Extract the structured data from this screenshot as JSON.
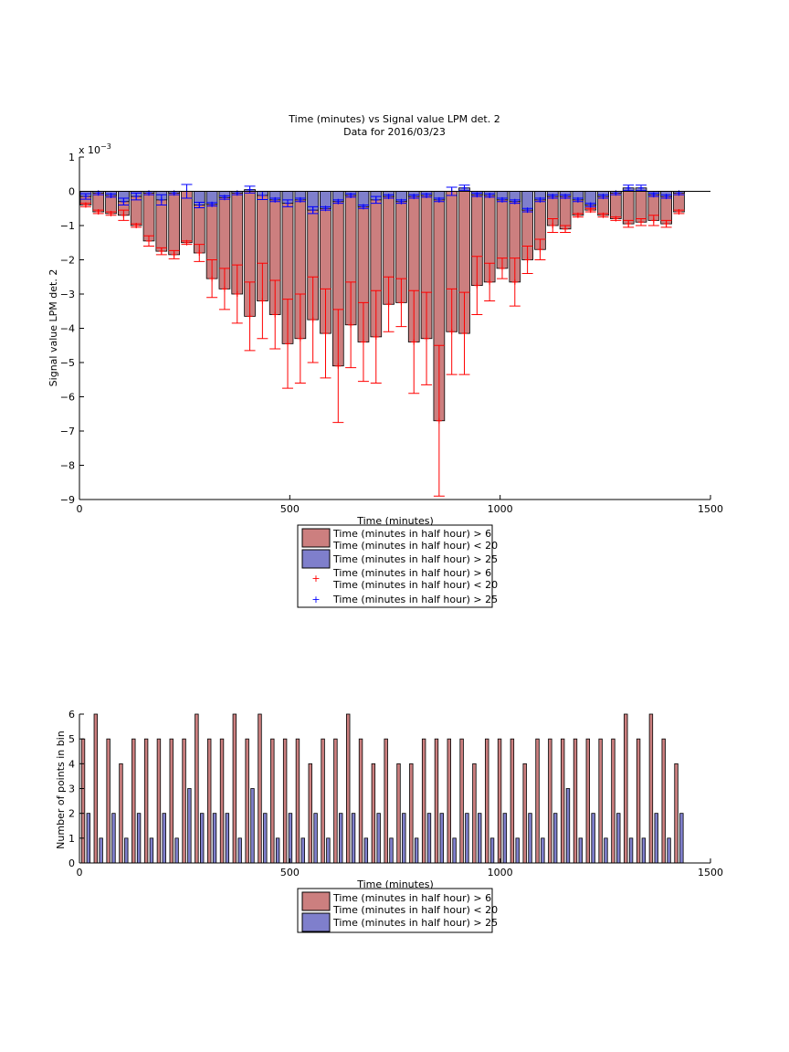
{
  "chart_data": [
    {
      "type": "bar",
      "title": "Time (minutes) vs Signal value LPM det. 2",
      "subtitle": "Data for 2016/03/23",
      "xlabel": "Time (minutes)",
      "ylabel": "Signal value LPM det. 2",
      "y_exponent_label": "x 10",
      "y_exponent": "−3",
      "xlim": [
        0,
        1500
      ],
      "ylim": [
        -9,
        1
      ],
      "xticks": [
        "0",
        "500",
        "1000",
        "1500"
      ],
      "yticks": [
        "1",
        "0",
        "−1",
        "−2",
        "−3",
        "−4",
        "−5",
        "−6",
        "−7",
        "−8",
        "−9"
      ],
      "grid": false,
      "legend_position": "below-plot",
      "legend": [
        "Time (minutes in half hour) > 6\nTime (minutes in half hour) < 20",
        "Time (minutes in half hour) > 25",
        "Time (minutes in half hour) > 6\nTime (minutes in half hour) < 20",
        "Time (minutes in half hour) > 25"
      ],
      "colors": {
        "series1": "#cc7f7f",
        "series2": "#7f7fcc",
        "err1": "#ff0000",
        "err2": "#0000ff"
      },
      "x": [
        15,
        45,
        75,
        105,
        135,
        165,
        195,
        225,
        255,
        285,
        315,
        345,
        375,
        405,
        435,
        465,
        495,
        525,
        555,
        585,
        615,
        645,
        675,
        705,
        735,
        765,
        795,
        825,
        855,
        885,
        915,
        945,
        975,
        1005,
        1035,
        1065,
        1095,
        1125,
        1155,
        1185,
        1215,
        1245,
        1275,
        1305,
        1335,
        1365,
        1395,
        1425
      ],
      "series": [
        {
          "name": "Time (minutes in half hour) > 6\nTime (minutes in half hour) < 20",
          "values": [
            -0.4,
            -0.6,
            -0.65,
            -0.7,
            -1.0,
            -1.45,
            -1.75,
            -1.85,
            -1.5,
            -1.8,
            -2.55,
            -2.85,
            -3.0,
            -3.65,
            -3.2,
            -3.6,
            -4.45,
            -4.3,
            -3.75,
            -4.15,
            -5.1,
            -3.9,
            -4.4,
            -4.25,
            -3.3,
            -3.25,
            -4.4,
            -4.3,
            -6.7,
            -4.1,
            -4.15,
            -2.75,
            -2.65,
            -2.25,
            -2.65,
            -2.0,
            -1.7,
            -1.0,
            -1.1,
            -0.7,
            -0.55,
            -0.7,
            -0.8,
            -0.95,
            -0.9,
            -0.85,
            -0.95,
            -0.6
          ],
          "errors": [
            0.05,
            0.05,
            0.05,
            0.15,
            0.05,
            0.15,
            0.1,
            0.12,
            0.05,
            0.25,
            0.55,
            0.6,
            0.85,
            1.0,
            1.1,
            1.0,
            1.3,
            1.3,
            1.25,
            1.3,
            1.65,
            1.25,
            1.15,
            1.35,
            0.8,
            0.7,
            1.5,
            1.35,
            2.2,
            1.25,
            1.2,
            0.85,
            0.55,
            0.3,
            0.7,
            0.4,
            0.3,
            0.2,
            0.1,
            0.05,
            0.05,
            0.05,
            0.05,
            0.1,
            0.1,
            0.15,
            0.1,
            0.05
          ]
        },
        {
          "name": "Time (minutes in half hour) > 25",
          "values": [
            -0.15,
            -0.05,
            -0.12,
            -0.3,
            -0.15,
            -0.05,
            -0.25,
            -0.05,
            0.0,
            -0.4,
            -0.38,
            -0.18,
            -0.05,
            0.05,
            -0.12,
            -0.25,
            -0.35,
            -0.25,
            -0.55,
            -0.5,
            -0.3,
            -0.12,
            -0.45,
            -0.25,
            -0.15,
            -0.3,
            -0.15,
            -0.12,
            -0.25,
            0.0,
            0.1,
            -0.1,
            -0.12,
            -0.25,
            -0.3,
            -0.55,
            -0.25,
            -0.15,
            -0.15,
            -0.25,
            -0.4,
            -0.15,
            -0.05,
            0.1,
            0.1,
            -0.1,
            -0.15,
            -0.05
          ],
          "errors": [
            0.08,
            0.05,
            0.05,
            0.1,
            0.1,
            0.05,
            0.15,
            0.05,
            0.2,
            0.08,
            0.05,
            0.05,
            0.05,
            0.1,
            0.12,
            0.05,
            0.1,
            0.05,
            0.1,
            0.05,
            0.05,
            0.05,
            0.05,
            0.1,
            0.05,
            0.05,
            0.05,
            0.05,
            0.05,
            0.12,
            0.08,
            0.05,
            0.05,
            0.05,
            0.05,
            0.05,
            0.05,
            0.05,
            0.05,
            0.05,
            0.05,
            0.05,
            0.05,
            0.08,
            0.08,
            0.05,
            0.05,
            0.05
          ]
        }
      ]
    },
    {
      "type": "bar",
      "xlabel": "Time (minutes)",
      "ylabel": "Number of points in bin",
      "xlim": [
        0,
        1500
      ],
      "ylim": [
        0,
        6
      ],
      "xticks": [
        "0",
        "500",
        "1000",
        "1500"
      ],
      "yticks": [
        "6",
        "5",
        "4",
        "3",
        "2",
        "1",
        "0"
      ],
      "grid": false,
      "legend_position": "below-plot",
      "legend": [
        "Time (minutes in half hour) > 6\nTime (minutes in half hour) < 20",
        "Time (minutes in half hour) > 25"
      ],
      "colors": {
        "series1": "#cc7f7f",
        "series2": "#7f7fcc"
      },
      "x": [
        15,
        45,
        75,
        105,
        135,
        165,
        195,
        225,
        255,
        285,
        315,
        345,
        375,
        405,
        435,
        465,
        495,
        525,
        555,
        585,
        615,
        645,
        675,
        705,
        735,
        765,
        795,
        825,
        855,
        885,
        915,
        945,
        975,
        1005,
        1035,
        1065,
        1095,
        1125,
        1155,
        1185,
        1215,
        1245,
        1275,
        1305,
        1335,
        1365,
        1395,
        1425
      ],
      "series": [
        {
          "name": "Time (minutes in half hour) > 6\nTime (minutes in half hour) < 20",
          "values": [
            5,
            6,
            5,
            4,
            5,
            5,
            5,
            5,
            5,
            6,
            5,
            5,
            6,
            5,
            6,
            5,
            5,
            5,
            4,
            5,
            5,
            6,
            5,
            4,
            5,
            4,
            4,
            5,
            5,
            5,
            5,
            4,
            5,
            5,
            5,
            4,
            5,
            5,
            5,
            5,
            5,
            5,
            5,
            6,
            5,
            6,
            5,
            4
          ]
        },
        {
          "name": "Time (minutes in half hour) > 25",
          "values": [
            2,
            1,
            2,
            1,
            2,
            1,
            2,
            1,
            3,
            2,
            2,
            2,
            1,
            3,
            2,
            1,
            2,
            1,
            2,
            1,
            2,
            2,
            1,
            2,
            1,
            2,
            1,
            2,
            2,
            1,
            2,
            2,
            1,
            2,
            1,
            2,
            1,
            2,
            3,
            1,
            2,
            1,
            2,
            1,
            1,
            2,
            1,
            2
          ]
        }
      ]
    }
  ]
}
